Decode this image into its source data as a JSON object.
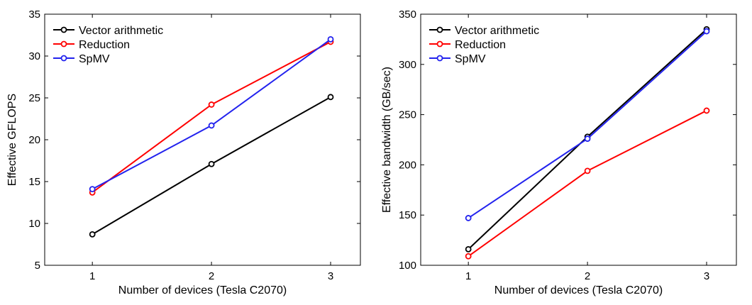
{
  "chart_data": [
    {
      "type": "line",
      "title": "",
      "xlabel": "Number of devices (Tesla C2070)",
      "ylabel": "Effective GFLOPS",
      "x": [
        1,
        2,
        3
      ],
      "xticks": [
        "1",
        "2",
        "3"
      ],
      "xlim": [
        0.6,
        3.25
      ],
      "ylim": [
        5,
        35
      ],
      "yticks": [
        "5",
        "10",
        "15",
        "20",
        "25",
        "30",
        "35"
      ],
      "grid": false,
      "legend_position": "top-left",
      "series": [
        {
          "name": "Vector arithmetic",
          "color": "#000000",
          "values": [
            8.7,
            17.1,
            25.1
          ]
        },
        {
          "name": "Reduction",
          "color": "#ff0000",
          "values": [
            13.7,
            24.2,
            31.7
          ]
        },
        {
          "name": "SpMV",
          "color": "#2222ee",
          "values": [
            14.1,
            21.7,
            32.0
          ]
        }
      ]
    },
    {
      "type": "line",
      "title": "",
      "xlabel": "Number of devices (Tesla C2070)",
      "ylabel": "Effective bandwidth (GB/sec)",
      "x": [
        1,
        2,
        3
      ],
      "xticks": [
        "1",
        "2",
        "3"
      ],
      "xlim": [
        0.6,
        3.25
      ],
      "ylim": [
        100,
        350
      ],
      "yticks": [
        "100",
        "150",
        "200",
        "250",
        "300",
        "350"
      ],
      "grid": false,
      "legend_position": "top-left",
      "series": [
        {
          "name": "Vector arithmetic",
          "color": "#000000",
          "values": [
            116,
            228,
            335
          ]
        },
        {
          "name": "Reduction",
          "color": "#ff0000",
          "values": [
            109,
            194,
            254
          ]
        },
        {
          "name": "SpMV",
          "color": "#2222ee",
          "values": [
            147,
            226,
            333
          ]
        }
      ]
    }
  ]
}
